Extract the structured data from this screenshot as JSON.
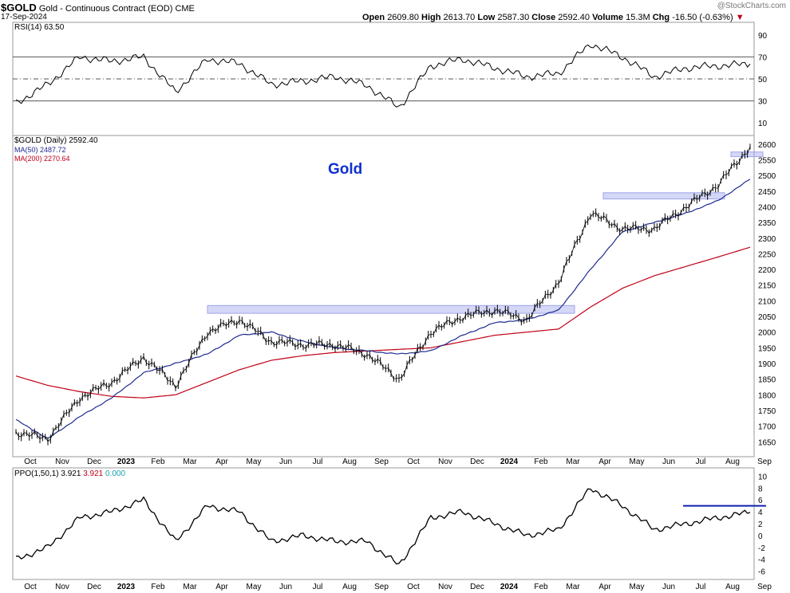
{
  "header": {
    "symbol": "$GOLD",
    "name": "Gold - Continuous Contract (EOD)",
    "exchange": "CME",
    "date": "17-Sep-2024",
    "open_label": "Open",
    "open": "2609.80",
    "high_label": "High",
    "high": "2613.70",
    "low_label": "Low",
    "low": "2587.30",
    "close_label": "Close",
    "close": "2592.40",
    "volume_label": "Volume",
    "volume": "15.3M",
    "chg_label": "Chg",
    "chg": "-16.50 (-0.63%)",
    "chg_arrow": "▼",
    "watermark": "@StockCharts.com"
  },
  "rsi_panel": {
    "label": "RSI(14)",
    "value": "63.50",
    "ticks": [
      "90",
      "70",
      "50",
      "30",
      "10"
    ],
    "levels": [
      70,
      50,
      30
    ]
  },
  "price_panel": {
    "label": "$GOLD (Daily)",
    "value": "2592.40",
    "ma50_label": "MA(50)",
    "ma50_value": "2487.72",
    "ma200_label": "MA(200)",
    "ma200_value": "2270.64",
    "annotation": "Gold",
    "ticks": [
      "2600",
      "2550",
      "2500",
      "2450",
      "2400",
      "2350",
      "2300",
      "2250",
      "2200",
      "2150",
      "2100",
      "2050",
      "2000",
      "1950",
      "1900",
      "1850",
      "1800",
      "1750",
      "1700",
      "1650"
    ]
  },
  "ppo_panel": {
    "label": "PPO(1,50,1)",
    "v1": "3.921",
    "v2": "3.921",
    "v3": "0.000",
    "ticks": [
      "10",
      "8",
      "6",
      "4",
      "2",
      "0",
      "-2",
      "-4",
      "-6"
    ]
  },
  "x_axis": {
    "labels": [
      "Oct",
      "Nov",
      "Dec",
      "2023",
      "Feb",
      "Mar",
      "Apr",
      "May",
      "Jun",
      "Jul",
      "Aug",
      "Sep",
      "Oct",
      "Nov",
      "Dec",
      "2024",
      "Feb",
      "Mar",
      "Apr",
      "May",
      "Jun",
      "Jul",
      "Aug",
      "Sep"
    ]
  },
  "colors": {
    "price": "#000000",
    "ma50": "#1f2a8f",
    "ma200": "#c00018",
    "zone": "#9fa6ea",
    "rsi_over": "#3f7a3f",
    "rsi_under": "#9a4a4a",
    "annotation": "#1030d0",
    "ppo_line": "#1020b0"
  },
  "chart_data": {
    "type": "line",
    "title": "$GOLD Gold - Continuous Contract (EOD) CME",
    "x": [
      "Oct",
      "Nov",
      "Dec",
      "2023",
      "Feb",
      "Mar",
      "Apr",
      "May",
      "Jun",
      "Jul",
      "Aug",
      "Sep",
      "Oct",
      "Nov",
      "Dec",
      "2024",
      "Feb",
      "Mar",
      "Apr",
      "May",
      "Jun",
      "Jul",
      "Aug",
      "Sep"
    ],
    "price_ylim": [
      1610,
      2620
    ],
    "series": [
      {
        "name": "$GOLD (Daily)",
        "values": [
          1680,
          1660,
          1790,
          1840,
          1920,
          1830,
          2000,
          2040,
          1970,
          1960,
          1960,
          1930,
          1850,
          2000,
          2050,
          2070,
          2040,
          2160,
          2380,
          2330,
          2330,
          2400,
          2470,
          2592
        ]
      },
      {
        "name": "MA(50)",
        "values": [
          1720,
          1660,
          1730,
          1790,
          1870,
          1900,
          1930,
          1990,
          2000,
          1970,
          1950,
          1940,
          1930,
          1940,
          1990,
          2030,
          2040,
          2070,
          2200,
          2320,
          2350,
          2380,
          2420,
          2488
        ]
      },
      {
        "name": "MA(200)",
        "values": [
          1860,
          1830,
          1810,
          1795,
          1790,
          1800,
          1840,
          1880,
          1910,
          1925,
          1935,
          1940,
          1945,
          1950,
          1970,
          1990,
          2000,
          2010,
          2080,
          2140,
          2180,
          2210,
          2240,
          2271
        ]
      }
    ],
    "rsi": {
      "ylim": [
        0,
        100
      ],
      "values": [
        28,
        45,
        70,
        66,
        70,
        38,
        68,
        64,
        45,
        48,
        52,
        44,
        24,
        62,
        68,
        60,
        52,
        55,
        82,
        70,
        52,
        60,
        62,
        63.5
      ]
    },
    "ppo": {
      "ylim": [
        -7,
        11
      ],
      "values": [
        -4,
        -2,
        3,
        4,
        6,
        -1,
        5,
        4,
        -1,
        0,
        -1,
        -1,
        -5,
        3,
        4,
        2,
        0,
        1,
        8,
        5,
        1,
        2,
        3,
        3.9
      ]
    },
    "resistance_zones": [
      {
        "from": "Apr",
        "to": "Mar",
        "low": 2060,
        "high": 2085
      },
      {
        "from": "Mar",
        "to": "Jul",
        "low": 2425,
        "high": 2445
      },
      {
        "from": "Aug",
        "to": "Sep",
        "low": 2560,
        "high": 2575
      }
    ],
    "xlabel": "",
    "ylabel": ""
  }
}
